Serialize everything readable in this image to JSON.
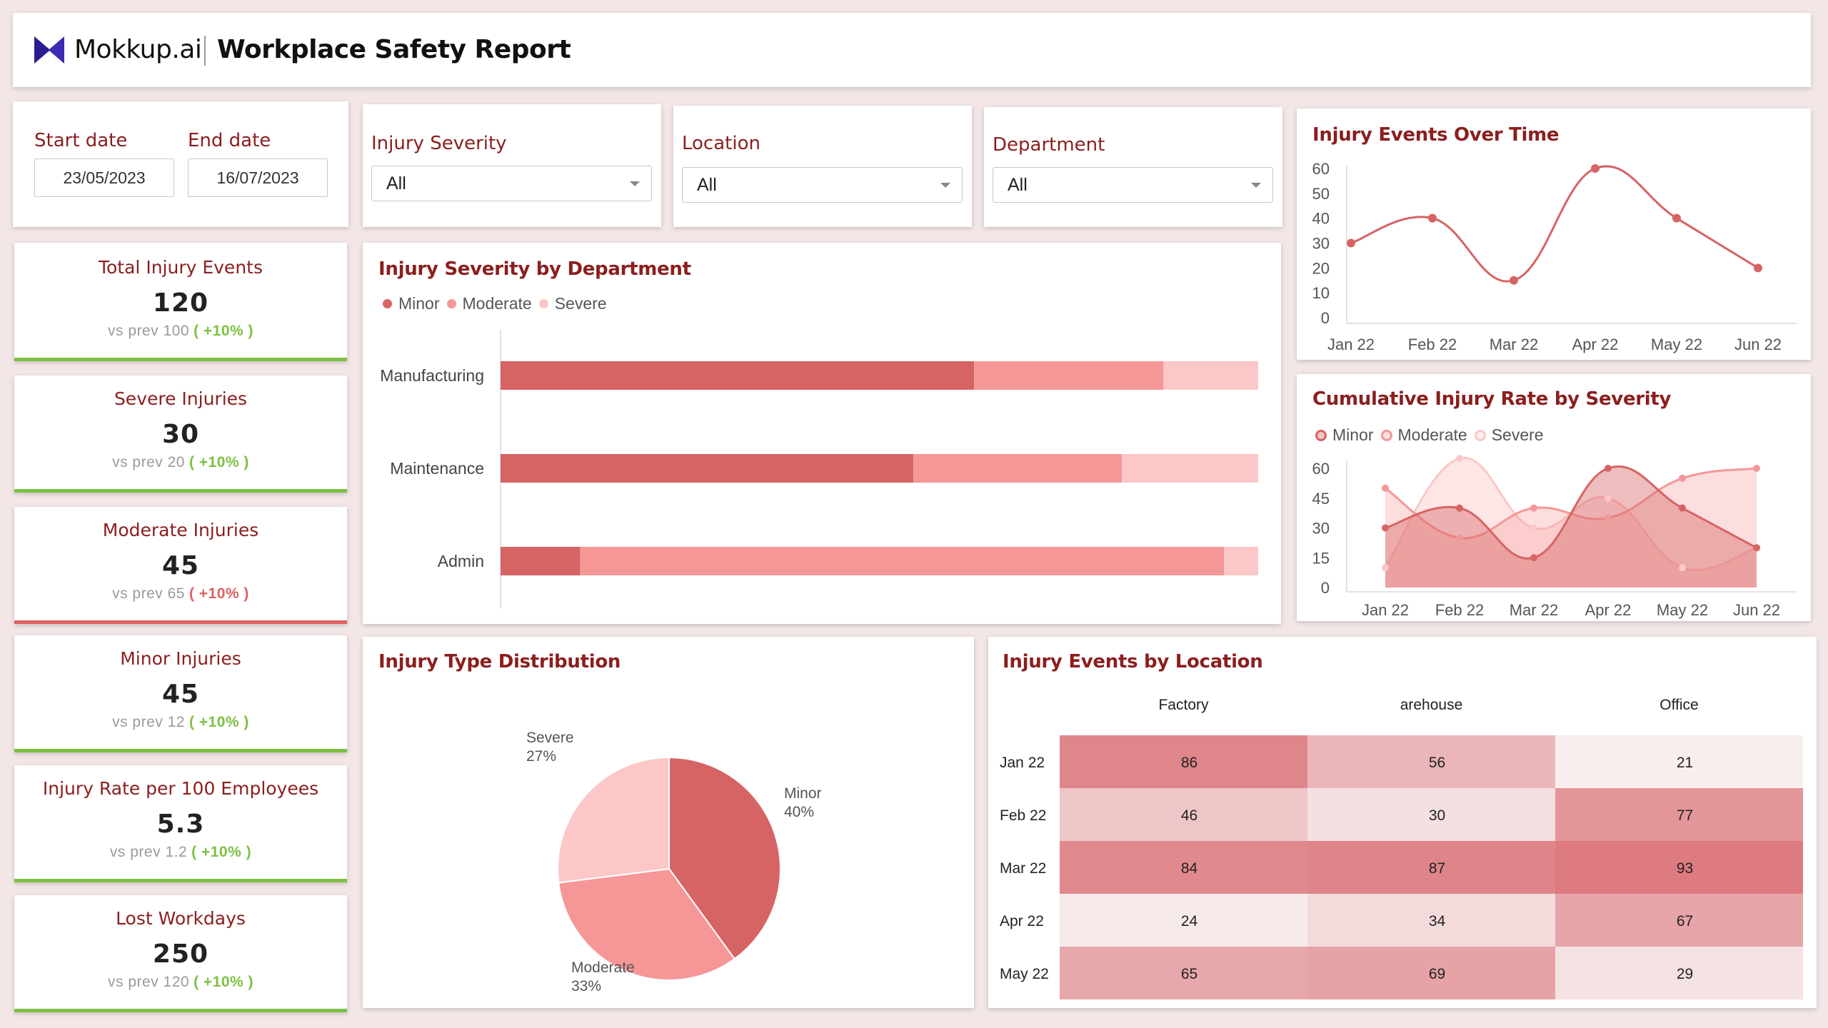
{
  "header": {
    "brand": "Mokkup.ai",
    "title": "Workplace Safety Report"
  },
  "filters": {
    "start_label": "Start date",
    "start_value": "23/05/2023",
    "end_label": "End date",
    "end_value": "16/07/2023",
    "severity_label": "Injury Severity",
    "severity_value": "All",
    "location_label": "Location",
    "location_value": "All",
    "department_label": "Department",
    "department_value": "All"
  },
  "colors": {
    "minor": "#d66464",
    "moderate": "#f59797",
    "severe": "#fcc7c7",
    "positive": "#7cc142",
    "negative": "#e06060"
  },
  "kpis": [
    {
      "title": "Total Injury Events",
      "value": "120",
      "prev_label": "vs prev",
      "prev": "100",
      "delta": "( +10% )",
      "trend": "positive"
    },
    {
      "title": "Severe Injuries",
      "value": "30",
      "prev_label": "vs prev",
      "prev": "20",
      "delta": "( +10% )",
      "trend": "positive"
    },
    {
      "title": "Moderate Injuries",
      "value": "45",
      "prev_label": "vs prev",
      "prev": "65",
      "delta": "( +10% )",
      "trend": "negative"
    },
    {
      "title": "Minor Injuries",
      "value": "45",
      "prev_label": "vs prev",
      "prev": "12",
      "delta": "( +10% )",
      "trend": "positive"
    },
    {
      "title": "Injury Rate per 100 Employees",
      "value": "5.3",
      "prev_label": "vs prev",
      "prev": "1.2",
      "delta": "( +10% )",
      "trend": "positive"
    },
    {
      "title": "Lost Workdays",
      "value": "250",
      "prev_label": "vs prev",
      "prev": "120",
      "delta": "( +10% )",
      "trend": "positive"
    }
  ],
  "chart_data": [
    {
      "id": "severity_by_department",
      "type": "bar",
      "orientation": "horizontal",
      "stacked": true,
      "title": "Injury Severity by Department",
      "categories": [
        "Manufacturing",
        "Maintenance",
        "Admin"
      ],
      "series": [
        {
          "name": "Minor",
          "values": [
            62.5,
            54.5,
            10.5
          ]
        },
        {
          "name": "Moderate",
          "values": [
            25,
            27.5,
            85
          ]
        },
        {
          "name": "Severe",
          "values": [
            12.5,
            18,
            4.5
          ]
        }
      ],
      "legend": [
        "Minor",
        "Moderate",
        "Severe"
      ],
      "xlim": [
        0,
        100
      ]
    },
    {
      "id": "events_over_time",
      "type": "line",
      "title": "Injury Events Over Time",
      "x": [
        "Jan 22",
        "Feb 22",
        "Mar 22",
        "Apr 22",
        "May 22",
        "Jun 22"
      ],
      "series": [
        {
          "values": [
            30,
            40,
            15,
            60,
            40,
            20
          ]
        }
      ],
      "yticks": [
        "0",
        "10",
        "20",
        "30",
        "40",
        "50",
        "60"
      ],
      "ylim": [
        0,
        60
      ]
    },
    {
      "id": "cumulative_rate",
      "type": "area",
      "title": "Cumulative Injury Rate by Severity",
      "x": [
        "Jan 22",
        "Feb 22",
        "Mar 22",
        "Apr 22",
        "May 22",
        "Jun 22"
      ],
      "series": [
        {
          "name": "Minor",
          "values": [
            30,
            40,
            15,
            60,
            40,
            20
          ]
        },
        {
          "name": "Moderate",
          "values": [
            50,
            25,
            40,
            35,
            55,
            60
          ]
        },
        {
          "name": "Severe",
          "values": [
            10,
            65,
            30,
            45,
            10,
            20
          ]
        }
      ],
      "yticks": [
        "0",
        "15",
        "30",
        "45",
        "60"
      ],
      "ylim": [
        0,
        60
      ]
    },
    {
      "id": "injury_type_distribution",
      "type": "pie",
      "title": "Injury Type Distribution",
      "slices": [
        {
          "label": "Minor",
          "pct_label": "40%",
          "value": 40
        },
        {
          "label": "Moderate",
          "pct_label": "33%",
          "value": 33
        },
        {
          "label": "Severe",
          "pct_label": "27%",
          "value": 27
        }
      ]
    },
    {
      "id": "events_by_location",
      "type": "heatmap",
      "title": "Injury Events by Location",
      "columns": [
        "Factory",
        "arehouse",
        "Office"
      ],
      "rows": [
        "Jan 22",
        "Feb 22",
        "Mar 22",
        "Apr 22",
        "May 22"
      ],
      "values": [
        [
          86,
          56,
          21
        ],
        [
          46,
          30,
          77
        ],
        [
          84,
          87,
          93
        ],
        [
          24,
          34,
          67
        ],
        [
          65,
          69,
          29
        ]
      ],
      "range": [
        20,
        95
      ]
    }
  ]
}
